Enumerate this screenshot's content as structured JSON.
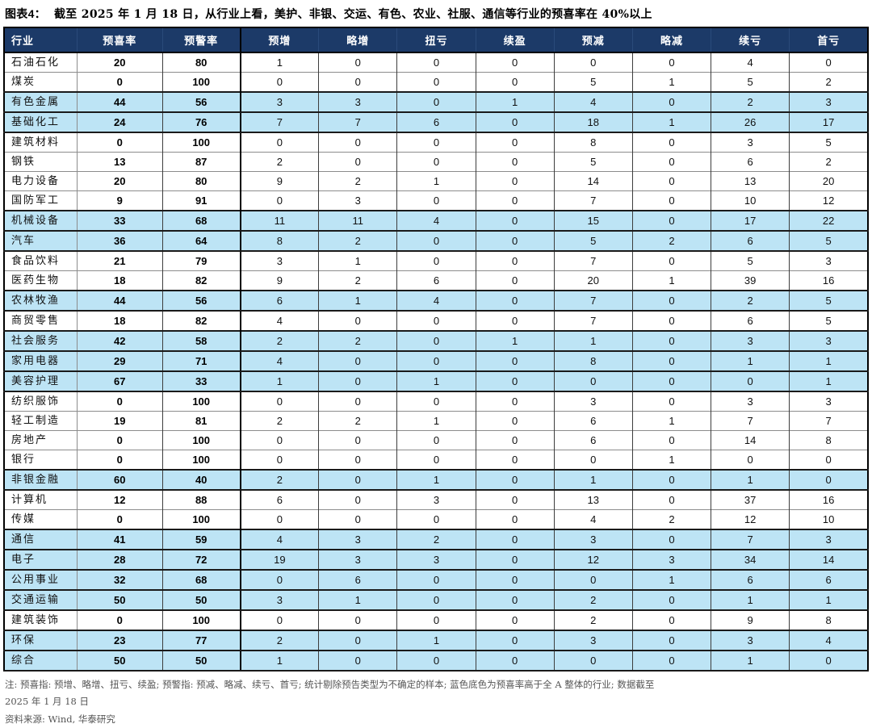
{
  "header": {
    "figure_label": "图表4：",
    "title": "截至 2025 年 1 月 18 日，从行业上看，美护、非银、交运、有色、农业、社服、通信等行业的预喜率在 40%以上"
  },
  "colors": {
    "header_bg": "#1c3a68",
    "highlight_row_bg": "#bde4f5"
  },
  "table": {
    "columns": [
      "行业",
      "预喜率",
      "预警率",
      "预增",
      "略增",
      "扭亏",
      "续盈",
      "预减",
      "略减",
      "续亏",
      "首亏"
    ],
    "rows": [
      {
        "industry": "石油石化",
        "values": [
          20,
          80,
          1,
          0,
          0,
          0,
          0,
          0,
          4,
          0
        ],
        "highlighted": false
      },
      {
        "industry": "煤炭",
        "values": [
          0,
          100,
          0,
          0,
          0,
          0,
          5,
          1,
          5,
          2
        ],
        "highlighted": false
      },
      {
        "industry": "有色金属",
        "values": [
          44,
          56,
          3,
          3,
          0,
          1,
          4,
          0,
          2,
          3
        ],
        "highlighted": true
      },
      {
        "industry": "基础化工",
        "values": [
          24,
          76,
          7,
          7,
          6,
          0,
          18,
          1,
          26,
          17
        ],
        "highlighted": true
      },
      {
        "industry": "建筑材料",
        "values": [
          0,
          100,
          0,
          0,
          0,
          0,
          8,
          0,
          3,
          5
        ],
        "highlighted": false
      },
      {
        "industry": "钢铁",
        "values": [
          13,
          87,
          2,
          0,
          0,
          0,
          5,
          0,
          6,
          2
        ],
        "highlighted": false
      },
      {
        "industry": "电力设备",
        "values": [
          20,
          80,
          9,
          2,
          1,
          0,
          14,
          0,
          13,
          20
        ],
        "highlighted": false
      },
      {
        "industry": "国防军工",
        "values": [
          9,
          91,
          0,
          3,
          0,
          0,
          7,
          0,
          10,
          12
        ],
        "highlighted": false
      },
      {
        "industry": "机械设备",
        "values": [
          33,
          68,
          11,
          11,
          4,
          0,
          15,
          0,
          17,
          22
        ],
        "highlighted": true
      },
      {
        "industry": "汽车",
        "values": [
          36,
          64,
          8,
          2,
          0,
          0,
          5,
          2,
          6,
          5
        ],
        "highlighted": true
      },
      {
        "industry": "食品饮料",
        "values": [
          21,
          79,
          3,
          1,
          0,
          0,
          7,
          0,
          5,
          3
        ],
        "highlighted": false
      },
      {
        "industry": "医药生物",
        "values": [
          18,
          82,
          9,
          2,
          6,
          0,
          20,
          1,
          39,
          16
        ],
        "highlighted": false
      },
      {
        "industry": "农林牧渔",
        "values": [
          44,
          56,
          6,
          1,
          4,
          0,
          7,
          0,
          2,
          5
        ],
        "highlighted": true
      },
      {
        "industry": "商贸零售",
        "values": [
          18,
          82,
          4,
          0,
          0,
          0,
          7,
          0,
          6,
          5
        ],
        "highlighted": false
      },
      {
        "industry": "社会服务",
        "values": [
          42,
          58,
          2,
          2,
          0,
          1,
          1,
          0,
          3,
          3
        ],
        "highlighted": true
      },
      {
        "industry": "家用电器",
        "values": [
          29,
          71,
          4,
          0,
          0,
          0,
          8,
          0,
          1,
          1
        ],
        "highlighted": true
      },
      {
        "industry": "美容护理",
        "values": [
          67,
          33,
          1,
          0,
          1,
          0,
          0,
          0,
          0,
          1
        ],
        "highlighted": true
      },
      {
        "industry": "纺织服饰",
        "values": [
          0,
          100,
          0,
          0,
          0,
          0,
          3,
          0,
          3,
          3
        ],
        "highlighted": false
      },
      {
        "industry": "轻工制造",
        "values": [
          19,
          81,
          2,
          2,
          1,
          0,
          6,
          1,
          7,
          7
        ],
        "highlighted": false
      },
      {
        "industry": "房地产",
        "values": [
          0,
          100,
          0,
          0,
          0,
          0,
          6,
          0,
          14,
          8
        ],
        "highlighted": false
      },
      {
        "industry": "银行",
        "values": [
          0,
          100,
          0,
          0,
          0,
          0,
          0,
          1,
          0,
          0
        ],
        "highlighted": false
      },
      {
        "industry": "非银金融",
        "values": [
          60,
          40,
          2,
          0,
          1,
          0,
          1,
          0,
          1,
          0
        ],
        "highlighted": true
      },
      {
        "industry": "计算机",
        "values": [
          12,
          88,
          6,
          0,
          3,
          0,
          13,
          0,
          37,
          16
        ],
        "highlighted": false
      },
      {
        "industry": "传媒",
        "values": [
          0,
          100,
          0,
          0,
          0,
          0,
          4,
          2,
          12,
          10
        ],
        "highlighted": false
      },
      {
        "industry": "通信",
        "values": [
          41,
          59,
          4,
          3,
          2,
          0,
          3,
          0,
          7,
          3
        ],
        "highlighted": true
      },
      {
        "industry": "电子",
        "values": [
          28,
          72,
          19,
          3,
          3,
          0,
          12,
          3,
          34,
          14
        ],
        "highlighted": true
      },
      {
        "industry": "公用事业",
        "values": [
          32,
          68,
          0,
          6,
          0,
          0,
          0,
          1,
          6,
          6
        ],
        "highlighted": true
      },
      {
        "industry": "交通运输",
        "values": [
          50,
          50,
          3,
          1,
          0,
          0,
          2,
          0,
          1,
          1
        ],
        "highlighted": true
      },
      {
        "industry": "建筑装饰",
        "values": [
          0,
          100,
          0,
          0,
          0,
          0,
          2,
          0,
          9,
          8
        ],
        "highlighted": false
      },
      {
        "industry": "环保",
        "values": [
          23,
          77,
          2,
          0,
          1,
          0,
          3,
          0,
          3,
          4
        ],
        "highlighted": true
      },
      {
        "industry": "综合",
        "values": [
          50,
          50,
          1,
          0,
          0,
          0,
          0,
          0,
          1,
          0
        ],
        "highlighted": true
      }
    ]
  },
  "footnotes": {
    "note_line1": "注: 预喜指: 预增、略增、扭亏、续盈; 预警指: 预减、略减、续亏、首亏; 统计剔除预告类型为不确定的样本; 蓝色底色为预喜率高于全 A 整体的行业; 数据截至",
    "note_line2": "2025 年 1 月 18 日",
    "source": "资料来源: Wind, 华泰研究"
  }
}
